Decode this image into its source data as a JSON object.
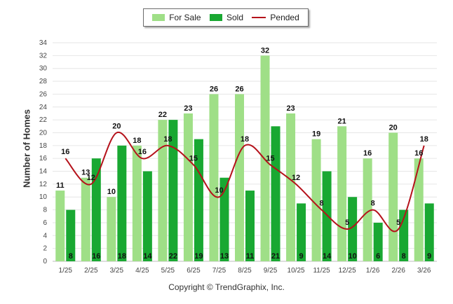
{
  "chart_data": {
    "type": "bar",
    "ylabel": "Number of Homes",
    "xlabel": "",
    "ylim": [
      0,
      34
    ],
    "ytick_step": 2,
    "grid": true,
    "legend_position": "top-center",
    "categories": [
      "1/25",
      "2/25",
      "3/25",
      "4/25",
      "5/25",
      "6/25",
      "7/25",
      "8/25",
      "9/25",
      "10/25",
      "11/25",
      "12/25",
      "1/26",
      "2/26",
      "3/26"
    ],
    "series": [
      {
        "name": "For Sale",
        "type": "bar",
        "color": "#9fdf87",
        "values": [
          11,
          13,
          10,
          18,
          22,
          23,
          26,
          26,
          32,
          23,
          19,
          21,
          16,
          20,
          16
        ]
      },
      {
        "name": "Sold",
        "type": "bar",
        "color": "#19a832",
        "values": [
          8,
          16,
          18,
          14,
          22,
          19,
          13,
          11,
          21,
          9,
          14,
          10,
          6,
          8,
          9
        ]
      },
      {
        "name": "Pended",
        "type": "line",
        "color": "#b5121b",
        "values": [
          16,
          12,
          20,
          16,
          18,
          15,
          10,
          18,
          15,
          12,
          8,
          5,
          8,
          5,
          18
        ]
      }
    ]
  },
  "credit": "Copyright © TrendGraphix, Inc."
}
